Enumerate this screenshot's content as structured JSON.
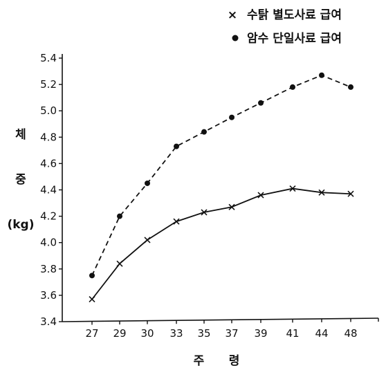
{
  "chart_data": {
    "type": "line",
    "categories": [
      "27",
      "29",
      "30",
      "33",
      "35",
      "37",
      "39",
      "41",
      "44",
      "48"
    ],
    "series": [
      {
        "name": "수탉 별도사료 급여",
        "marker": "x",
        "line": "solid",
        "values": [
          3.57,
          3.84,
          4.02,
          4.16,
          4.23,
          4.27,
          4.36,
          4.41,
          4.38,
          4.37
        ]
      },
      {
        "name": "암수 단일사료 급여",
        "marker": "dot",
        "line": "dashed",
        "values": [
          3.75,
          4.2,
          4.45,
          4.73,
          4.84,
          4.95,
          5.06,
          5.18,
          5.27,
          5.18
        ]
      }
    ],
    "y_ticks": [
      "3.4",
      "3.6",
      "3.8",
      "4.0",
      "4.2",
      "4.4",
      "4.6",
      "4.8",
      "5.0",
      "5.2",
      "5.4"
    ],
    "ylim": [
      3.4,
      5.4
    ],
    "ylabel": [
      "체",
      "중",
      "(kg)"
    ],
    "xlabel": "주      령",
    "legend_position": "top-right",
    "grid": false
  }
}
